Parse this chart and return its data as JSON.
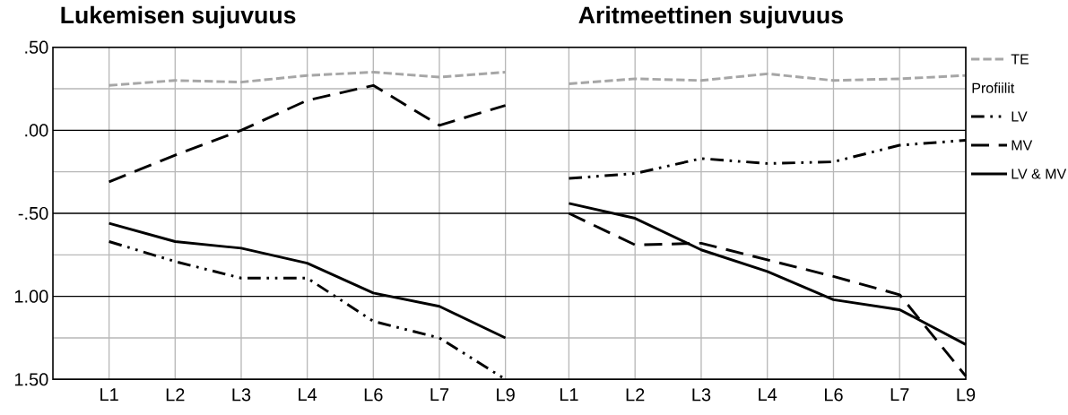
{
  "chart_data": [
    {
      "type": "line",
      "title": "Lukemisen sujuvuus",
      "categories": [
        "L1",
        "L2",
        "L3",
        "L4",
        "L6",
        "L7",
        "L9"
      ],
      "series": [
        {
          "color": "#a6a6a6",
          "line_style": "dashed",
          "values": [
            0.27,
            0.3,
            0.29,
            0.33,
            0.35,
            0.32,
            0.35
          ]
        },
        {
          "color": "#000000",
          "line_style": "dashdotdot",
          "values": [
            -0.67,
            -0.79,
            -0.89,
            -0.89,
            -1.15,
            -1.25,
            -1.5
          ]
        },
        {
          "color": "#000000",
          "line_style": "longdashed",
          "values": [
            -0.31,
            -0.15,
            0.0,
            0.18,
            0.27,
            0.03,
            0.15
          ]
        },
        {
          "color": "#000000",
          "line_style": "solid",
          "values": [
            -0.56,
            -0.67,
            -0.71,
            -0.8,
            -0.98,
            -1.06,
            -1.25
          ]
        }
      ],
      "ylim": [
        -1.5,
        0.5
      ],
      "yticks": [
        {
          "value": 0.5,
          "label": ".50"
        },
        {
          "value": 0.25,
          "label": null
        },
        {
          "value": 0,
          "label": ".00"
        },
        {
          "value": -0.25,
          "label": null
        },
        {
          "value": -0.5,
          "label": "-.50"
        },
        {
          "value": -0.75,
          "label": null
        },
        {
          "value": -1,
          "label": "1.00"
        },
        {
          "value": -1.25,
          "label": null
        },
        {
          "value": -1.5,
          "label": "1.50"
        }
      ],
      "grid": true,
      "legend": false
    },
    {
      "type": "line",
      "title": "Aritmeettinen sujuvuus",
      "categories": [
        "L1",
        "L2",
        "L3",
        "L4",
        "L6",
        "L7",
        "L9"
      ],
      "legend_title": "Profiilit",
      "series": [
        {
          "name": "TE",
          "color": "#a6a6a6",
          "line_style": "dashed",
          "values": [
            0.28,
            0.31,
            0.3,
            0.34,
            0.3,
            0.31,
            0.33
          ]
        },
        {
          "name": "LV",
          "color": "#000000",
          "line_style": "dashdotdot",
          "values": [
            -0.29,
            -0.26,
            -0.17,
            -0.2,
            -0.19,
            -0.09,
            -0.06
          ]
        },
        {
          "name": "MV",
          "color": "#000000",
          "line_style": "longdashed",
          "values": [
            -0.5,
            -0.69,
            -0.68,
            -0.78,
            -0.88,
            -0.99,
            -1.48
          ]
        },
        {
          "name": "LV & MV",
          "color": "#000000",
          "line_style": "solid",
          "values": [
            -0.44,
            -0.53,
            -0.72,
            -0.85,
            -1.02,
            -1.08,
            -1.29
          ]
        }
      ],
      "ylim": [
        -1.5,
        0.5
      ],
      "yticks": [
        0.5,
        {
          "value": 0.25,
          "label": null
        },
        0,
        {
          "value": -0.25,
          "label": null
        },
        -0.5,
        {
          "value": -0.75,
          "label": null
        },
        -1,
        {
          "value": -1.25,
          "label": null
        },
        -1.5
      ],
      "grid": true,
      "legend": "right",
      "tick_labels": "x"
    }
  ]
}
